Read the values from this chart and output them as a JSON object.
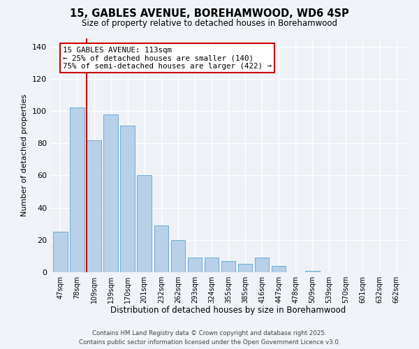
{
  "title": "15, GABLES AVENUE, BOREHAMWOOD, WD6 4SP",
  "subtitle": "Size of property relative to detached houses in Borehamwood",
  "xlabel": "Distribution of detached houses by size in Borehamwood",
  "ylabel": "Number of detached properties",
  "bar_labels": [
    "47sqm",
    "78sqm",
    "109sqm",
    "139sqm",
    "170sqm",
    "201sqm",
    "232sqm",
    "262sqm",
    "293sqm",
    "324sqm",
    "355sqm",
    "385sqm",
    "416sqm",
    "447sqm",
    "478sqm",
    "509sqm",
    "539sqm",
    "570sqm",
    "601sqm",
    "632sqm",
    "662sqm"
  ],
  "bar_values": [
    25,
    102,
    82,
    98,
    91,
    60,
    29,
    20,
    9,
    9,
    7,
    5,
    9,
    4,
    0,
    1,
    0,
    0,
    0,
    0,
    0
  ],
  "bar_color": "#b8d0e8",
  "bar_edge_color": "#6aadd5",
  "vline_color": "#cc0000",
  "vline_index": 2,
  "ylim": [
    0,
    145
  ],
  "yticks": [
    0,
    20,
    40,
    60,
    80,
    100,
    120,
    140
  ],
  "annotation_line1": "15 GABLES AVENUE: 113sqm",
  "annotation_line2": "← 25% of detached houses are smaller (140)",
  "annotation_line3": "75% of semi-detached houses are larger (422) →",
  "footer_line1": "Contains HM Land Registry data © Crown copyright and database right 2025.",
  "footer_line2": "Contains public sector information licensed under the Open Government Licence v3.0.",
  "bg_color": "#f0f4f8",
  "plot_bg_color": "#eef2f7"
}
